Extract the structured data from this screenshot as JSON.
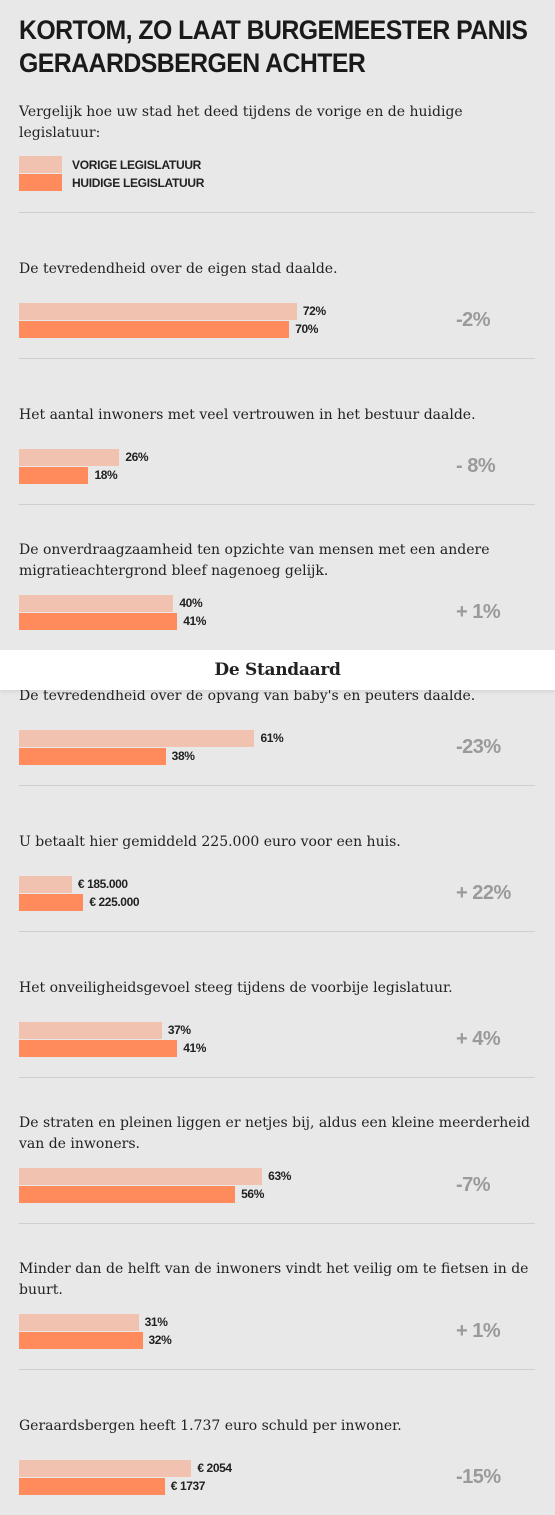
{
  "title": "Kortom, zo laat burgemeester Panis Geraardsbergen achter",
  "intro": "Vergelijk hoe uw stad het deed tijdens de vorige en de huidige legislatuur:",
  "legend": [
    {
      "name": "Vorige legislatuur",
      "color": "#f2c2b0"
    },
    {
      "name": "Huidige legislatuur",
      "color": "#ff8a5c"
    }
  ],
  "brand": "De Standaard",
  "chart_data": [
    {
      "type": "bar",
      "title": "De tevredendheid over de eigen stad daalde.",
      "values": [
        72,
        70
      ],
      "value_labels": [
        "72%",
        "70%"
      ],
      "change": "-2%",
      "xlim": [
        0,
        100
      ]
    },
    {
      "type": "bar",
      "title": "Het aantal inwoners met veel vertrouwen in het bestuur daalde.",
      "values": [
        26,
        18
      ],
      "value_labels": [
        "26%",
        "18%"
      ],
      "change": "- 8%",
      "xlim": [
        0,
        100
      ]
    },
    {
      "type": "bar",
      "title": "De onverdraagzaamheid ten opzichte van mensen met een andere migratieachtergrond bleef nagenoeg gelijk.",
      "values": [
        40,
        41
      ],
      "value_labels": [
        "40%",
        "41%"
      ],
      "change": "+ 1%",
      "xlim": [
        0,
        100
      ]
    },
    {
      "type": "bar",
      "title": "De tevredendheid over de opvang van baby's en peuters daalde.",
      "values": [
        61,
        38
      ],
      "value_labels": [
        "61%",
        "38%"
      ],
      "change": "-23%",
      "xlim": [
        0,
        100
      ]
    },
    {
      "type": "bar",
      "title": "U betaalt hier gemiddeld 225.000 euro voor een huis.",
      "values": [
        185000,
        225000
      ],
      "value_labels": [
        "€ 185.000",
        "€ 225.000"
      ],
      "change": "+ 22%",
      "xlim": [
        0,
        1350000
      ]
    },
    {
      "type": "bar",
      "title": "Het onveiligheidsgevoel steeg tijdens de voorbije legislatuur.",
      "values": [
        37,
        41
      ],
      "value_labels": [
        "37%",
        "41%"
      ],
      "change": "+ 4%",
      "xlim": [
        0,
        100
      ]
    },
    {
      "type": "bar",
      "title": "De straten en pleinen liggen er netjes bij,  aldus een kleine meerderheid van de inwoners.",
      "values": [
        63,
        56
      ],
      "value_labels": [
        "63%",
        "56%"
      ],
      "change": "-7%",
      "xlim": [
        0,
        100
      ]
    },
    {
      "type": "bar",
      "title": "Minder dan de helft van de inwoners vindt het veilig om te fietsen in de buurt.",
      "values": [
        31,
        32
      ],
      "value_labels": [
        "31%",
        "32%"
      ],
      "change": "+ 1%",
      "xlim": [
        0,
        100
      ]
    },
    {
      "type": "bar",
      "title": "Geraardsbergen heeft 1.737 euro schuld per inwoner.",
      "values": [
        2054,
        1737
      ],
      "value_labels": [
        "€ 2054",
        "€ 1737"
      ],
      "change": "-15%",
      "xlim": [
        0,
        4600
      ]
    }
  ]
}
